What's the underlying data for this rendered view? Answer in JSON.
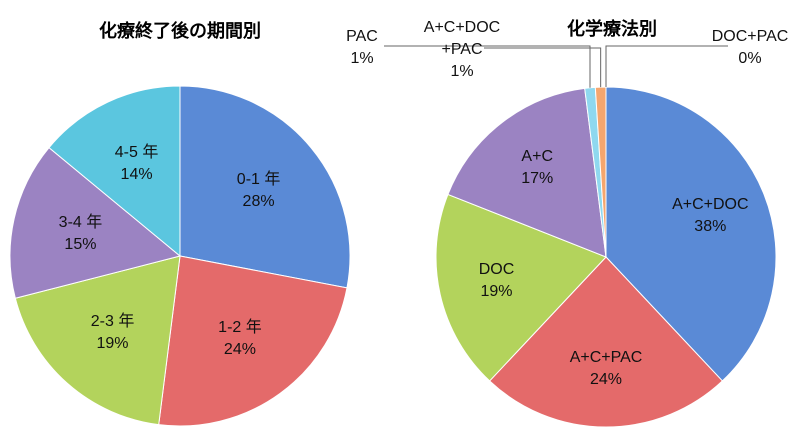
{
  "chart_data": [
    {
      "type": "pie",
      "title": "化療終了後の期間別",
      "categories": [
        "0-1 年",
        "1-2 年",
        "2-3 年",
        "3-4 年",
        "4-5 年"
      ],
      "values": [
        28,
        24,
        19,
        15,
        14
      ],
      "value_labels": [
        "28%",
        "24%",
        "19%",
        "15%",
        "14%"
      ],
      "colors": [
        "#5a8ad6",
        "#e46a6a",
        "#b3d35c",
        "#9b83c2",
        "#5bc6df"
      ]
    },
    {
      "type": "pie",
      "title": "化学療法別",
      "categories": [
        "A+C+DOC",
        "A+C+PAC",
        "DOC",
        "A+C",
        "PAC",
        "A+C+DOC\n+PAC",
        "DOC+PAC"
      ],
      "values": [
        38,
        24,
        19,
        17,
        1,
        1,
        0
      ],
      "value_labels": [
        "38%",
        "24%",
        "19%",
        "17%",
        "1%",
        "1%",
        "0%"
      ],
      "colors": [
        "#5a8ad6",
        "#e46a6a",
        "#b3d35c",
        "#9b83c2",
        "#8fd8ef",
        "#f5a66e",
        "#bcbcbc"
      ]
    }
  ]
}
